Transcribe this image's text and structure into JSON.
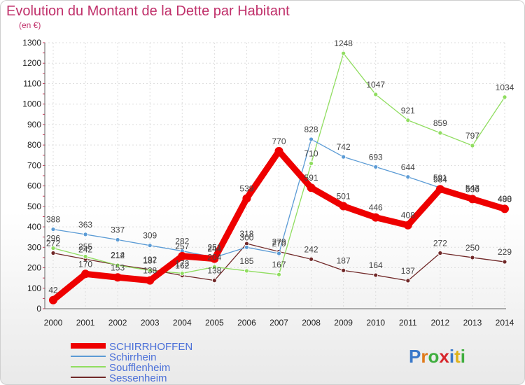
{
  "header": {
    "title": "Evolution du Montant de la Dette par Habitant",
    "subtitle": "(en €)"
  },
  "logo": {
    "text": "Proxiti"
  },
  "chart_data": {
    "type": "line",
    "title": "Evolution du Montant de la Dette par Habitant",
    "subtitle": "(en €)",
    "x": [
      2000,
      2001,
      2002,
      2003,
      2004,
      2005,
      2006,
      2007,
      2008,
      2009,
      2010,
      2011,
      2012,
      2013,
      2014
    ],
    "ylim": [
      0,
      1300
    ],
    "yticks": [
      0,
      100,
      200,
      300,
      400,
      500,
      600,
      700,
      800,
      900,
      1000,
      1100,
      1200,
      1300
    ],
    "grid": true,
    "legend_position": "bottom-left",
    "series": [
      {
        "name": "SCHIRRHOFFEN",
        "color": "#ee0000",
        "values": [
          42,
          170,
          153,
          138,
          257,
          244,
          539,
          770,
          591,
          501,
          446,
          408,
          584,
          536,
          488
        ]
      },
      {
        "name": "Schirrhein",
        "color": "#5b9bd5",
        "values": [
          388,
          363,
          337,
          309,
          282,
          251,
          300,
          270,
          828,
          742,
          693,
          644,
          591,
          543,
          490
        ]
      },
      {
        "name": "Soufflenheim",
        "color": "#90dd60",
        "values": [
          296,
          255,
          212,
          187,
          173,
          204,
          185,
          167,
          710,
          1248,
          1047,
          921,
          859,
          797,
          1034
        ]
      },
      {
        "name": "Sessenheim",
        "color": "#702828",
        "values": [
          272,
          242,
          214,
          192,
          162,
          138,
          318,
          279,
          242,
          187,
          164,
          137,
          272,
          250,
          229
        ]
      }
    ]
  }
}
